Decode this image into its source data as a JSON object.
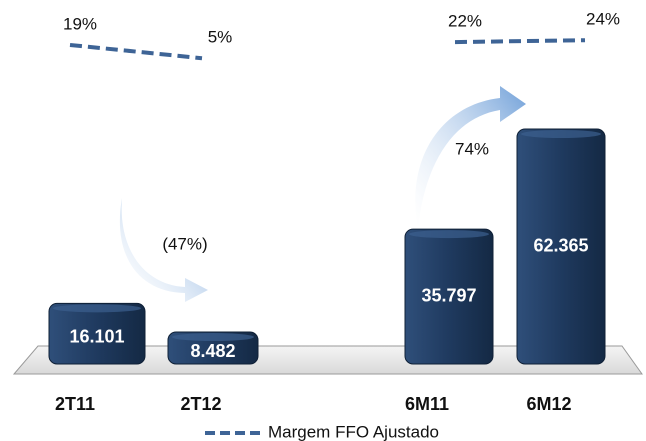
{
  "chart_data": [
    {
      "type": "bar",
      "categories": [
        "2T11",
        "2T12"
      ],
      "values": [
        16101,
        8482
      ],
      "value_labels": [
        "16.101",
        "8.482"
      ],
      "color": "#1f3a5f",
      "line": {
        "values": [
          19,
          5
        ],
        "value_labels": [
          "19%",
          "5%"
        ],
        "color": "#3e6496"
      },
      "annotation": "(47%)"
    },
    {
      "type": "bar",
      "categories": [
        "6M11",
        "6M12"
      ],
      "values": [
        35797,
        62365
      ],
      "value_labels": [
        "35.797",
        "62.365"
      ],
      "color": "#1f3a5f",
      "line": {
        "values": [
          22,
          24
        ],
        "value_labels": [
          "22%",
          "24%"
        ],
        "color": "#3e6496"
      },
      "annotation": "74%"
    }
  ],
  "legend": "Margem FFO Ajustado"
}
